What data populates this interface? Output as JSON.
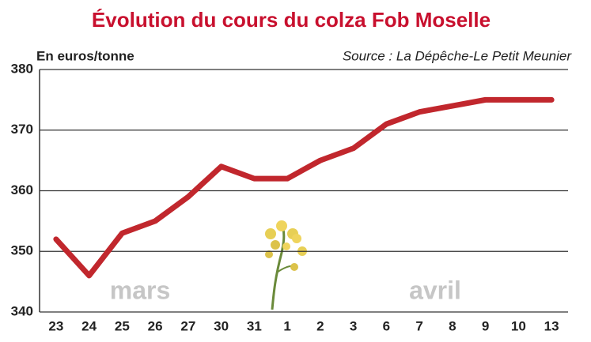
{
  "chart_data": {
    "type": "line",
    "title": "Évolution du cours du colza Fob Moselle",
    "y_label": "En euros/tonne",
    "source": "Source : La Dépêche-Le Petit Meunier",
    "annotations": [
      "mars",
      "avril"
    ],
    "categories": [
      "23",
      "24",
      "25",
      "26",
      "27",
      "30",
      "31",
      "1",
      "2",
      "3",
      "6",
      "7",
      "8",
      "9",
      "10",
      "13"
    ],
    "values": [
      352,
      346,
      353,
      355,
      359,
      364,
      362,
      362,
      365,
      367,
      371,
      373,
      374,
      375,
      375,
      375
    ],
    "color": "#c1272d",
    "ylim": [
      340,
      380
    ],
    "yticks": [
      340,
      350,
      360,
      370,
      380
    ],
    "grid": true
  }
}
